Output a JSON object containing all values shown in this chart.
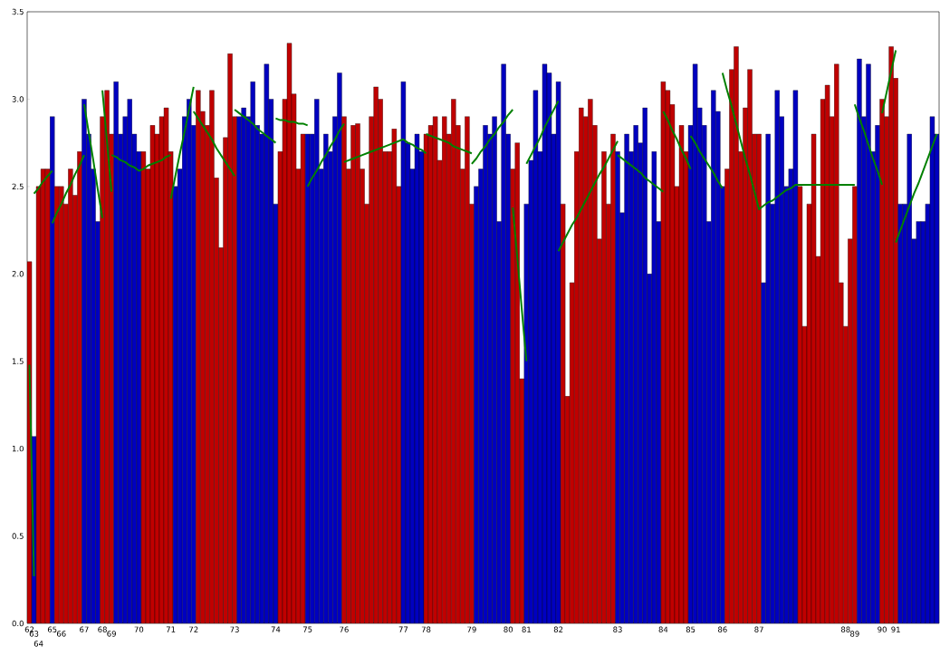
{
  "chart_data": {
    "type": "bar",
    "categories": [
      "62",
      "63",
      "64",
      null,
      null,
      "65",
      null,
      "66",
      null,
      null,
      null,
      null,
      "67",
      null,
      null,
      null,
      "68",
      null,
      "69",
      null,
      null,
      null,
      null,
      null,
      "70",
      null,
      null,
      null,
      null,
      null,
      null,
      "71",
      null,
      null,
      null,
      null,
      "72",
      null,
      null,
      null,
      null,
      null,
      null,
      null,
      null,
      "73",
      null,
      null,
      null,
      null,
      null,
      null,
      null,
      null,
      "74",
      null,
      null,
      null,
      null,
      null,
      null,
      "75",
      null,
      null,
      null,
      null,
      null,
      null,
      null,
      "76",
      null,
      null,
      null,
      null,
      null,
      null,
      null,
      null,
      null,
      null,
      null,
      null,
      "77",
      null,
      null,
      null,
      null,
      "78",
      null,
      null,
      null,
      null,
      null,
      null,
      null,
      null,
      null,
      "79",
      null,
      null,
      null,
      null,
      null,
      null,
      null,
      "80",
      null,
      null,
      null,
      "81",
      null,
      null,
      null,
      null,
      null,
      null,
      "82",
      null,
      null,
      null,
      null,
      null,
      null,
      null,
      null,
      null,
      null,
      null,
      null,
      "83",
      null,
      null,
      null,
      null,
      null,
      null,
      null,
      null,
      null,
      "84",
      null,
      null,
      null,
      null,
      null,
      "85",
      null,
      null,
      null,
      null,
      null,
      null,
      "86",
      null,
      null,
      null,
      null,
      null,
      null,
      null,
      "87",
      null,
      null,
      null,
      null,
      null,
      null,
      null,
      null,
      null,
      null,
      null,
      null,
      null,
      null,
      null,
      null,
      null,
      null,
      "88",
      null,
      "89",
      null,
      null,
      null,
      null,
      null,
      "90",
      null,
      null,
      "91",
      null,
      null,
      null,
      null,
      null,
      null,
      null,
      null,
      null
    ],
    "ylim": [
      0,
      3.5
    ],
    "yticks": [
      {
        "value": 0,
        "label": "0.0"
      },
      {
        "value": 0.5,
        "label": "0.5"
      },
      {
        "value": 1,
        "label": "1.0"
      },
      {
        "value": 1.5,
        "label": "1.5"
      },
      {
        "value": 2,
        "label": "2.0"
      },
      {
        "value": 2.5,
        "label": "2.5"
      },
      {
        "value": 3,
        "label": "3.0"
      },
      {
        "value": 3.5,
        "label": "3.5"
      }
    ],
    "series": [
      {
        "values": [
          2.07,
          1.07,
          2.5,
          2.6,
          2.6,
          2.9,
          2.5,
          2.5,
          2.4,
          2.6,
          2.45,
          2.7,
          3.0,
          2.8,
          2.6,
          2.3,
          2.9,
          3.05,
          2.8,
          3.1,
          2.8,
          2.9,
          3.0,
          2.8,
          2.7,
          2.7,
          2.6,
          2.85,
          2.8,
          2.9,
          2.95,
          2.7,
          2.5,
          2.6,
          2.9,
          3.0,
          2.85,
          3.05,
          2.93,
          2.85,
          3.05,
          2.55,
          2.15,
          2.78,
          3.26,
          2.9,
          2.9,
          2.95,
          2.9,
          3.1,
          2.85,
          2.8,
          3.2,
          3.0,
          2.4,
          2.7,
          3.0,
          3.32,
          3.03,
          2.6,
          2.8,
          2.8,
          2.8,
          3.0,
          2.6,
          2.8,
          2.7,
          2.9,
          3.15,
          2.9,
          2.6,
          2.85,
          2.86,
          2.6,
          2.4,
          2.9,
          3.07,
          3.0,
          2.7,
          2.7,
          2.83,
          2.5,
          3.1,
          2.75,
          2.6,
          2.8,
          2.7,
          2.8,
          2.85,
          2.9,
          2.65,
          2.9,
          2.8,
          3.0,
          2.85,
          2.6,
          2.9,
          2.4,
          2.5,
          2.6,
          2.85,
          2.8,
          2.9,
          2.3,
          3.2,
          2.8,
          2.6,
          2.75,
          1.4,
          2.4,
          2.65,
          3.05,
          2.7,
          3.2,
          3.15,
          2.8,
          3.1,
          2.4,
          1.3,
          1.95,
          2.7,
          2.95,
          2.9,
          3.0,
          2.85,
          2.2,
          2.7,
          2.4,
          2.8,
          2.7,
          2.35,
          2.8,
          2.7,
          2.85,
          2.75,
          2.95,
          2.0,
          2.7,
          2.3,
          3.1,
          3.05,
          2.97,
          2.5,
          2.85,
          2.7,
          2.85,
          3.2,
          2.95,
          2.85,
          2.3,
          3.05,
          2.93,
          2.5,
          2.6,
          3.17,
          3.3,
          2.7,
          2.95,
          3.17,
          2.8,
          2.8,
          1.95,
          2.8,
          2.4,
          3.05,
          2.9,
          2.5,
          2.6,
          3.05,
          2.5,
          1.7,
          2.4,
          2.8,
          2.1,
          3.0,
          3.08,
          2.9,
          3.2,
          1.95,
          1.7,
          2.2,
          2.5,
          3.23,
          2.9,
          3.2,
          2.7,
          2.85,
          3.0,
          2.9,
          3.3,
          3.12,
          2.4,
          2.4,
          2.8,
          2.2,
          2.3,
          2.3,
          2.4,
          2.9,
          2.8
        ],
        "colors": [
          "#c00000",
          "#0000c0",
          "#c00000",
          "#c00000",
          "#c00000",
          "#0000c0",
          "#c00000",
          "#c00000",
          "#c00000",
          "#c00000",
          "#c00000",
          "#c00000",
          "#0000c0",
          "#0000c0",
          "#0000c0",
          "#0000c0",
          "#c00000",
          "#c00000",
          "#c00000",
          "#0000c0",
          "#0000c0",
          "#0000c0",
          "#0000c0",
          "#0000c0",
          "#0000c0",
          "#c00000",
          "#c00000",
          "#c00000",
          "#c00000",
          "#c00000",
          "#c00000",
          "#c00000",
          "#0000c0",
          "#0000c0",
          "#0000c0",
          "#0000c0",
          "#0000c0",
          "#c00000",
          "#c00000",
          "#c00000",
          "#c00000",
          "#c00000",
          "#c00000",
          "#c00000",
          "#c00000",
          "#c00000",
          "#0000c0",
          "#0000c0",
          "#0000c0",
          "#0000c0",
          "#0000c0",
          "#0000c0",
          "#0000c0",
          "#0000c0",
          "#0000c0",
          "#c00000",
          "#c00000",
          "#c00000",
          "#c00000",
          "#c00000",
          "#c00000",
          "#0000c0",
          "#0000c0",
          "#0000c0",
          "#0000c0",
          "#0000c0",
          "#0000c0",
          "#0000c0",
          "#0000c0",
          "#c00000",
          "#c00000",
          "#c00000",
          "#c00000",
          "#c00000",
          "#c00000",
          "#c00000",
          "#c00000",
          "#c00000",
          "#c00000",
          "#c00000",
          "#c00000",
          "#c00000",
          "#0000c0",
          "#0000c0",
          "#0000c0",
          "#0000c0",
          "#0000c0",
          "#c00000",
          "#c00000",
          "#c00000",
          "#c00000",
          "#c00000",
          "#c00000",
          "#c00000",
          "#c00000",
          "#c00000",
          "#c00000",
          "#c00000",
          "#0000c0",
          "#0000c0",
          "#0000c0",
          "#0000c0",
          "#0000c0",
          "#0000c0",
          "#0000c0",
          "#0000c0",
          "#c00000",
          "#c00000",
          "#c00000",
          "#0000c0",
          "#0000c0",
          "#0000c0",
          "#0000c0",
          "#0000c0",
          "#0000c0",
          "#0000c0",
          "#0000c0",
          "#c00000",
          "#c00000",
          "#c00000",
          "#c00000",
          "#c00000",
          "#c00000",
          "#c00000",
          "#c00000",
          "#c00000",
          "#c00000",
          "#c00000",
          "#c00000",
          "#0000c0",
          "#0000c0",
          "#0000c0",
          "#0000c0",
          "#0000c0",
          "#0000c0",
          "#0000c0",
          "#0000c0",
          "#0000c0",
          "#0000c0",
          "#c00000",
          "#c00000",
          "#c00000",
          "#c00000",
          "#c00000",
          "#c00000",
          "#0000c0",
          "#0000c0",
          "#0000c0",
          "#0000c0",
          "#0000c0",
          "#0000c0",
          "#0000c0",
          "#0000c0",
          "#c00000",
          "#c00000",
          "#c00000",
          "#c00000",
          "#c00000",
          "#c00000",
          "#c00000",
          "#c00000",
          "#0000c0",
          "#0000c0",
          "#0000c0",
          "#0000c0",
          "#0000c0",
          "#0000c0",
          "#0000c0",
          "#0000c0",
          "#c00000",
          "#c00000",
          "#c00000",
          "#c00000",
          "#c00000",
          "#c00000",
          "#c00000",
          "#c00000",
          "#c00000",
          "#c00000",
          "#c00000",
          "#c00000",
          "#c00000",
          "#0000c0",
          "#0000c0",
          "#0000c0",
          "#0000c0",
          "#0000c0",
          "#c00000",
          "#c00000",
          "#c00000",
          "#c00000",
          "#0000c0",
          "#0000c0",
          "#0000c0",
          "#0000c0",
          "#0000c0",
          "#0000c0",
          "#0000c0",
          "#0000c0",
          "#0000c0"
        ]
      },
      {
        "type": "line",
        "color": "#008000",
        "values": [
          1.48,
          0.27,
          null,
          null,
          null,
          2.29,
          2.35,
          2.4,
          2.46,
          2.51,
          2.57,
          2.62,
          2.68,
          null,
          null,
          null,
          3.05,
          2.76,
          2.47,
          null,
          null,
          null,
          null,
          null,
          null,
          null,
          null,
          null,
          null,
          null,
          null,
          2.43,
          2.56,
          2.69,
          2.81,
          2.94,
          3.07,
          null,
          null,
          null,
          null,
          null,
          null,
          null,
          null,
          2.94,
          2.92,
          2.9,
          2.88,
          2.86,
          2.83,
          2.81,
          2.79,
          2.77,
          2.75,
          null,
          null,
          null,
          null,
          null,
          null,
          2.5,
          2.55,
          2.59,
          2.64,
          2.68,
          2.73,
          2.77,
          2.82,
          2.86,
          null,
          null,
          null,
          null,
          null,
          null,
          null,
          null,
          null,
          null,
          null,
          null,
          null,
          null,
          null,
          null,
          null,
          2.8,
          2.79,
          2.78,
          2.77,
          2.76,
          2.75,
          2.73,
          2.72,
          2.71,
          2.7,
          2.69,
          null,
          null,
          null,
          null,
          null,
          null,
          null,
          null,
          2.38,
          2.09,
          1.79,
          1.5,
          null,
          null,
          null,
          null,
          null,
          null,
          2.13,
          2.18,
          2.23,
          2.28,
          2.32,
          2.37,
          2.42,
          2.47,
          2.52,
          2.57,
          2.61,
          2.66,
          2.71,
          2.76,
          null,
          null,
          null,
          null,
          null,
          null,
          null,
          null,
          null,
          2.93,
          2.88,
          2.82,
          2.77,
          2.71,
          2.66,
          2.6,
          null,
          null,
          null,
          null,
          null,
          null,
          3.15,
          3.05,
          2.96,
          2.86,
          2.76,
          2.66,
          2.57,
          2.47,
          2.37,
          2.39,
          2.41,
          2.42,
          2.44,
          2.46,
          2.48,
          2.49,
          2.51,
          2.51,
          2.51,
          2.51,
          2.51,
          2.51,
          2.51,
          2.51,
          2.51,
          2.51,
          2.51,
          2.51,
          2.51,
          2.51,
          null,
          null,
          null,
          null,
          null,
          2.92,
          3.04,
          3.16,
          3.28,
          null,
          null,
          null,
          null,
          null,
          null,
          null,
          null,
          null
        ]
      },
      {
        "type": "line",
        "color": "#008000",
        "values": [
          null,
          2.46,
          2.49,
          2.53,
          2.56,
          2.59,
          null,
          null,
          null,
          null,
          null,
          null,
          2.97,
          2.81,
          2.65,
          2.48,
          2.32,
          null,
          2.68,
          2.67,
          2.65,
          2.64,
          2.62,
          2.61,
          2.59,
          2.6,
          2.62,
          2.63,
          2.64,
          2.65,
          2.67,
          2.68,
          null,
          null,
          null,
          null,
          2.93,
          2.89,
          2.85,
          2.81,
          2.77,
          2.72,
          2.68,
          2.64,
          2.6,
          2.56,
          null,
          null,
          null,
          null,
          null,
          null,
          null,
          null,
          2.89,
          2.88,
          2.88,
          2.87,
          2.87,
          2.86,
          2.86,
          2.85,
          null,
          null,
          null,
          null,
          null,
          null,
          null,
          2.64,
          2.65,
          2.66,
          2.67,
          2.68,
          2.69,
          2.7,
          2.71,
          2.72,
          2.73,
          2.74,
          2.75,
          2.76,
          2.77,
          2.75,
          2.74,
          2.72,
          2.71,
          2.69,
          null,
          null,
          null,
          null,
          null,
          null,
          null,
          null,
          null,
          2.63,
          2.66,
          2.7,
          2.73,
          2.77,
          2.8,
          2.84,
          2.87,
          2.91,
          2.94,
          null,
          null,
          2.63,
          2.68,
          2.73,
          2.78,
          2.84,
          2.89,
          2.94,
          2.99,
          null,
          null,
          null,
          null,
          null,
          null,
          null,
          null,
          null,
          null,
          null,
          null,
          2.68,
          2.66,
          2.64,
          2.62,
          2.6,
          2.58,
          2.55,
          2.53,
          2.51,
          2.49,
          2.47,
          null,
          null,
          null,
          null,
          null,
          2.79,
          2.75,
          2.7,
          2.66,
          2.62,
          2.58,
          2.53,
          2.49,
          null,
          null,
          null,
          null,
          null,
          null,
          null,
          null,
          null,
          null,
          null,
          null,
          null,
          null,
          null,
          null,
          null,
          null,
          null,
          null,
          null,
          null,
          null,
          null,
          null,
          null,
          null,
          null,
          2.97,
          2.89,
          2.82,
          2.74,
          2.66,
          2.59,
          2.51,
          null,
          null,
          2.18,
          2.25,
          2.32,
          2.39,
          2.46,
          2.52,
          2.59,
          2.66,
          2.73,
          2.8
        ]
      }
    ]
  }
}
